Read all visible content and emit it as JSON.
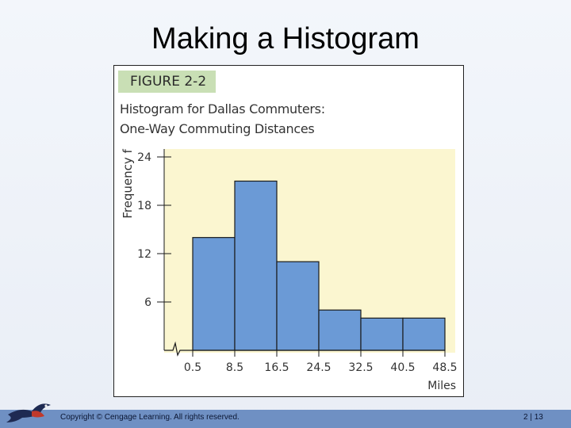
{
  "slide": {
    "title": "Making a Histogram",
    "footer_copyright": "Copyright © Cengage Learning. All rights reserved.",
    "footer_page": "2 | 13"
  },
  "figure": {
    "label": "FIGURE 2-2",
    "title_line1": "Histogram for Dallas Commuters:",
    "title_line2": "One-Way Commuting Distances"
  },
  "colors": {
    "bar_fill": "#6b9ad6",
    "bar_stroke": "#1a1a1a",
    "plot_bg": "#fbf6d0",
    "badge_bg": "#c9dfb5",
    "footer_bar": "#6f90c3"
  },
  "chart_data": {
    "type": "bar",
    "bin_edges": [
      "0.5",
      "8.5",
      "16.5",
      "24.5",
      "32.5",
      "40.5",
      "48.5"
    ],
    "values": [
      14,
      21,
      11,
      5,
      4,
      4
    ],
    "ylabel": "Frequency f",
    "xlabel": "Miles",
    "yticks": [
      "6",
      "12",
      "18",
      "24"
    ],
    "ylim": [
      0,
      24
    ],
    "grid": false,
    "axis_break": true
  }
}
